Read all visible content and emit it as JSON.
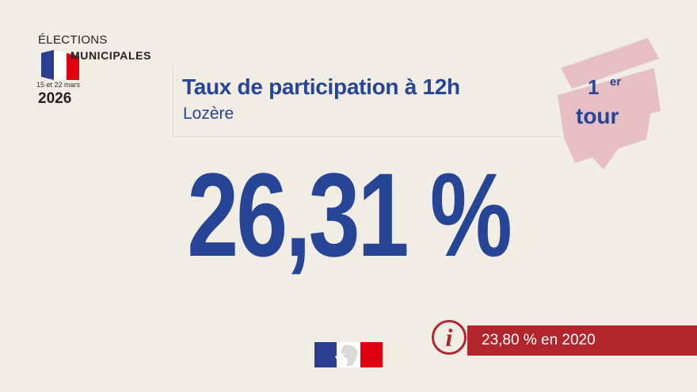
{
  "logo": {
    "line1": "ÉLECTIONS",
    "line2": "MUNICIPALES",
    "dates": "15 et 22 mars",
    "year": "2026",
    "flag_colors": [
      "#2a3f8f",
      "#ffffff",
      "#e1000f"
    ]
  },
  "header": {
    "title": "Taux de participation à 12h",
    "subtitle": "Lozère"
  },
  "round_badge": {
    "number": "1",
    "superscript": "er",
    "word": "tour",
    "ribbon_color": "#e6bfc4"
  },
  "main": {
    "value": "26,31 %"
  },
  "info": {
    "icon": "info-icon",
    "glyph": "i",
    "text": "23,80 % en 2020",
    "color": "#b1262c"
  },
  "footer": {
    "logo_icon": "marianne-logo-icon"
  },
  "colors": {
    "background": "#f1ece4",
    "primary_blue": "#264596",
    "accent_red": "#b1262c"
  }
}
